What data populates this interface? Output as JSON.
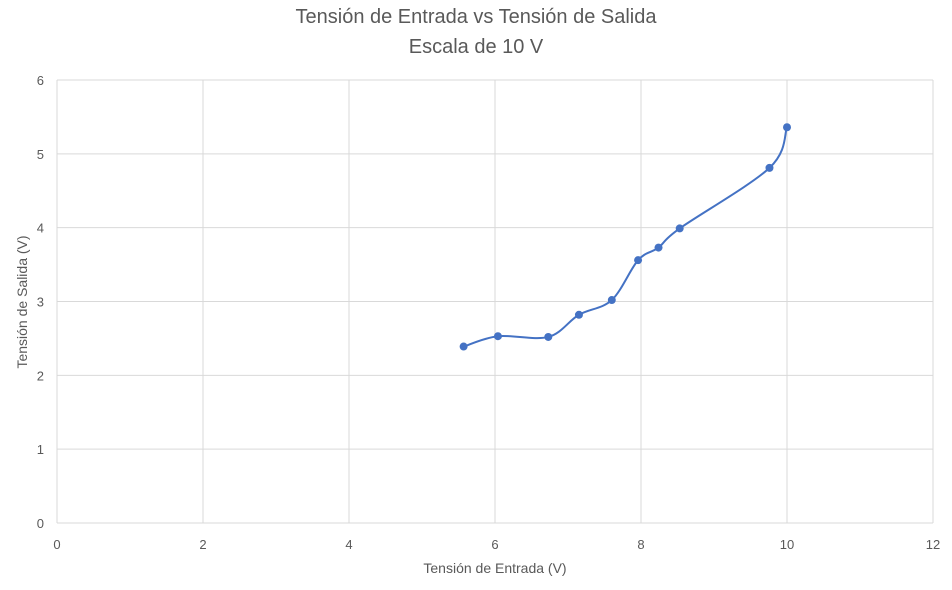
{
  "chart_data": {
    "type": "scatter",
    "title": "Tensión de Entrada vs Tensión de Salida",
    "subtitle": "Escala de 10 V",
    "xlabel": "Tensión de Entrada (V)",
    "ylabel": "Tensión de Salida (V)",
    "xlim": [
      0,
      12
    ],
    "ylim": [
      0,
      6
    ],
    "xticks": [
      0,
      2,
      4,
      6,
      8,
      10,
      12
    ],
    "yticks": [
      0,
      1,
      2,
      3,
      4,
      5,
      6
    ],
    "grid": true,
    "smooth_line": true,
    "series": [
      {
        "color": "#4472C4",
        "x": [
          5.57,
          6.04,
          6.73,
          7.15,
          7.6,
          7.96,
          8.24,
          8.53,
          9.76,
          10.0
        ],
        "y": [
          2.39,
          2.53,
          2.52,
          2.82,
          3.02,
          3.56,
          3.73,
          3.99,
          4.81,
          5.36
        ]
      }
    ]
  }
}
